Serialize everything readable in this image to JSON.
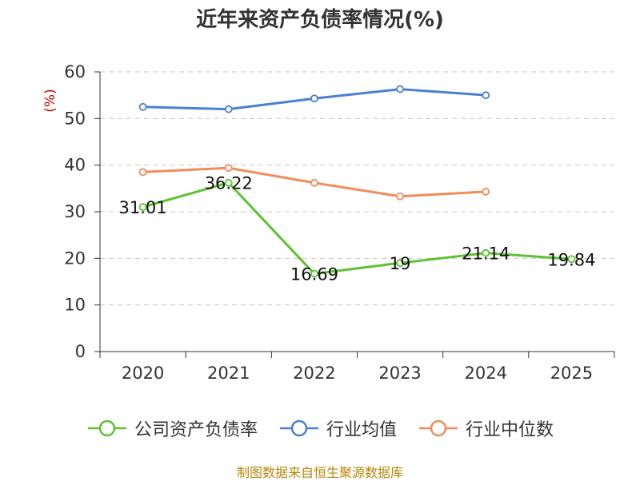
{
  "title": "近年来资产负债率情况(%)",
  "source": "制图数据来自恒生聚源数据库",
  "chart_data": {
    "type": "line",
    "title": "近年来资产负债率情况(%)",
    "ylabel": "(%)",
    "xlabel": "",
    "categories": [
      "2020",
      "2021",
      "2022",
      "2023",
      "2024",
      "2025"
    ],
    "ylim": [
      0,
      60
    ],
    "yticks": [
      0,
      10,
      20,
      30,
      40,
      50,
      60
    ],
    "grid": true,
    "legend_position": "bottom",
    "series": [
      {
        "name": "公司资产负债率",
        "color": "#5dc230",
        "values": [
          31.01,
          36.22,
          16.69,
          19,
          21.14,
          19.84
        ],
        "labels": [
          "31.01",
          "36.22",
          "16.69",
          "19",
          "21.14",
          "19.84"
        ]
      },
      {
        "name": "行业均值",
        "color": "#4a7fd6",
        "values": [
          52.5,
          52.0,
          54.3,
          56.3,
          55.0,
          null
        ]
      },
      {
        "name": "行业中位数",
        "color": "#f08c5a",
        "values": [
          38.5,
          39.4,
          36.2,
          33.3,
          34.3,
          null
        ]
      }
    ]
  }
}
